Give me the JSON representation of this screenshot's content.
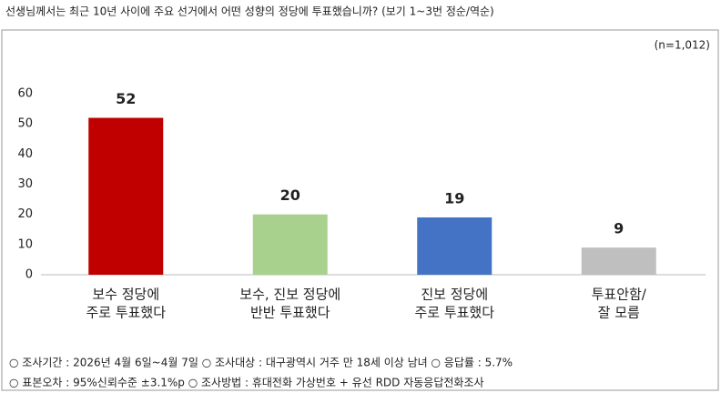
{
  "chart_data": {
    "type": "bar",
    "title": "선생님께서는 최근 10년 사이에 주요 선거에서 어떤 성향의 정당에 투표했습니까? (보기 1~3번 정순/역순)",
    "note": "(n=1,012)",
    "categories": [
      [
        "보수 정당에",
        "주로 투표했다"
      ],
      [
        "보수, 진보 정당에",
        "반반 투표했다"
      ],
      [
        "진보 정당에",
        "주로 투표했다"
      ],
      [
        "투표안함/",
        "잘 모름"
      ]
    ],
    "values": [
      52,
      20,
      19,
      9
    ],
    "colors": [
      "#c00000",
      "#a9d18e",
      "#4472c4",
      "#bfbfbf"
    ],
    "ylim": [
      0,
      60
    ],
    "yticks": [
      0,
      10,
      20,
      30,
      40,
      50,
      60
    ],
    "grid": false,
    "footnotes": [
      "○ 조사기간 : 2026년 4월 6일~4월 7일 ○ 조사대상 : 대구광역시 거주 만 18세 이상 남녀 ○ 응답률 : 5.7%",
      "○ 표본오차 : 95%신뢰수준 ±3.1%p ○ 조사방법 : 휴대전화 가상번호 + 유선 RDD 자동응답전화조사"
    ]
  }
}
